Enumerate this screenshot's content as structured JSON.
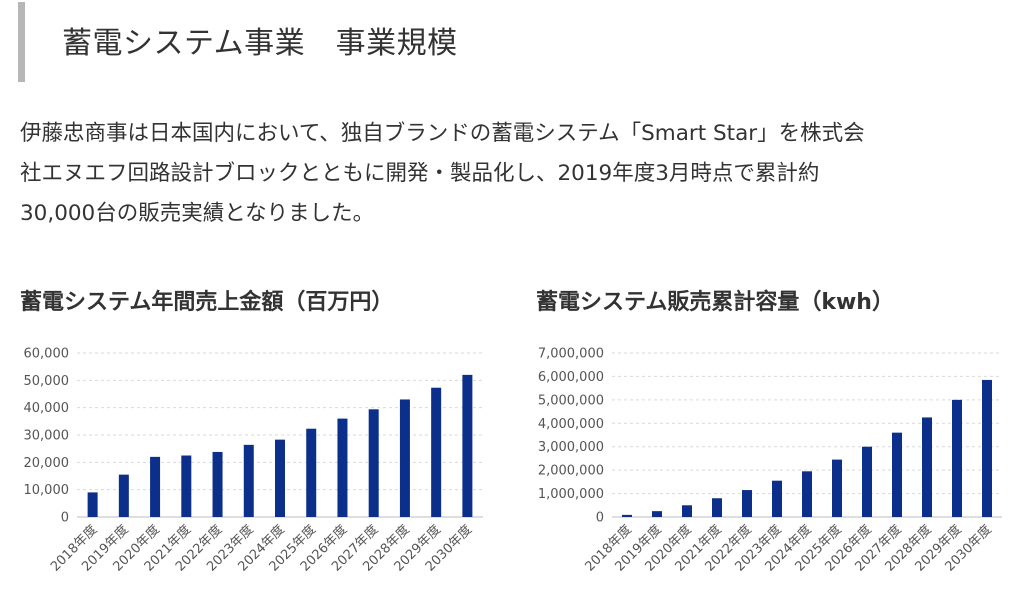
{
  "heading": "蓄電システム事業　事業規模",
  "intro": [
    "伊藤忠商事は日本国内において、独自ブランドの蓄電システム「Smart Star」を株式会",
    "社エヌエフ回路設計ブロックとともに開発・製品化し、2019年度3月時点で累計約",
    "30,000台の販売実績となりました。"
  ],
  "chart_data": [
    {
      "type": "bar",
      "title": "蓄電システム年間売上金額（百万円）",
      "categories": [
        "2018年度",
        "2019年度",
        "2020年度",
        "2021年度",
        "2022年度",
        "2023年度",
        "2024年度",
        "2025年度",
        "2026年度",
        "2027年度",
        "2028年度",
        "2029年度",
        "2030年度"
      ],
      "values": [
        9000,
        15500,
        22000,
        22500,
        23800,
        26400,
        28300,
        32300,
        36000,
        39400,
        43000,
        47300,
        52000
      ],
      "ylim": [
        0,
        60000
      ],
      "yticks": [
        "0",
        "10,000",
        "20,000",
        "30,000",
        "40,000",
        "50,000",
        "60,000"
      ],
      "grid": true,
      "color": "#0b2f8a"
    },
    {
      "type": "bar",
      "title": "蓄電システム販売累計容量（kwh）",
      "categories": [
        "2018年度",
        "2019年度",
        "2020年度",
        "2021年度",
        "2022年度",
        "2023年度",
        "2024年度",
        "2025年度",
        "2026年度",
        "2027年度",
        "2028年度",
        "2029年度",
        "2030年度"
      ],
      "values": [
        90000,
        250000,
        500000,
        800000,
        1150000,
        1550000,
        1950000,
        2450000,
        3000000,
        3600000,
        4250000,
        5000000,
        5850000
      ],
      "ylim": [
        0,
        7000000
      ],
      "yticks": [
        "0",
        "1,000,000",
        "2,000,000",
        "3,000,000",
        "4,000,000",
        "5,000,000",
        "6,000,000",
        "7,000,000"
      ],
      "grid": true,
      "color": "#0b2f8a"
    }
  ]
}
